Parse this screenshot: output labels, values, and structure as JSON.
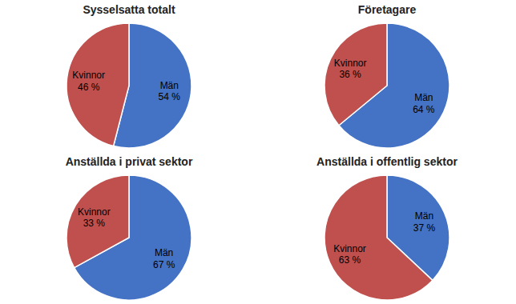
{
  "chart_data": [
    {
      "type": "pie",
      "title": "Sysselsatta totalt",
      "categories": [
        "Män",
        "Kvinnor"
      ],
      "values": [
        54,
        46
      ],
      "value_labels": [
        "54 %",
        "46 %"
      ],
      "colors": [
        "#4472C4",
        "#C0504D"
      ],
      "data_labels": true
    },
    {
      "type": "pie",
      "title": "Företagare",
      "categories": [
        "Män",
        "Kvinnor"
      ],
      "values": [
        64,
        36
      ],
      "value_labels": [
        "64 %",
        "36 %"
      ],
      "colors": [
        "#4472C4",
        "#C0504D"
      ],
      "data_labels": true
    },
    {
      "type": "pie",
      "title": "Anställda i privat sektor",
      "categories": [
        "Män",
        "Kvinnor"
      ],
      "values": [
        67,
        33
      ],
      "value_labels": [
        "67 %",
        "33 %"
      ],
      "colors": [
        "#4472C4",
        "#C0504D"
      ],
      "data_labels": true
    },
    {
      "type": "pie",
      "title": "Anställda i offentlig sektor",
      "categories": [
        "Män",
        "Kvinnor"
      ],
      "values": [
        37,
        63
      ],
      "value_labels": [
        "37 %",
        "63 %"
      ],
      "colors": [
        "#4472C4",
        "#C0504D"
      ],
      "data_labels": true
    }
  ]
}
